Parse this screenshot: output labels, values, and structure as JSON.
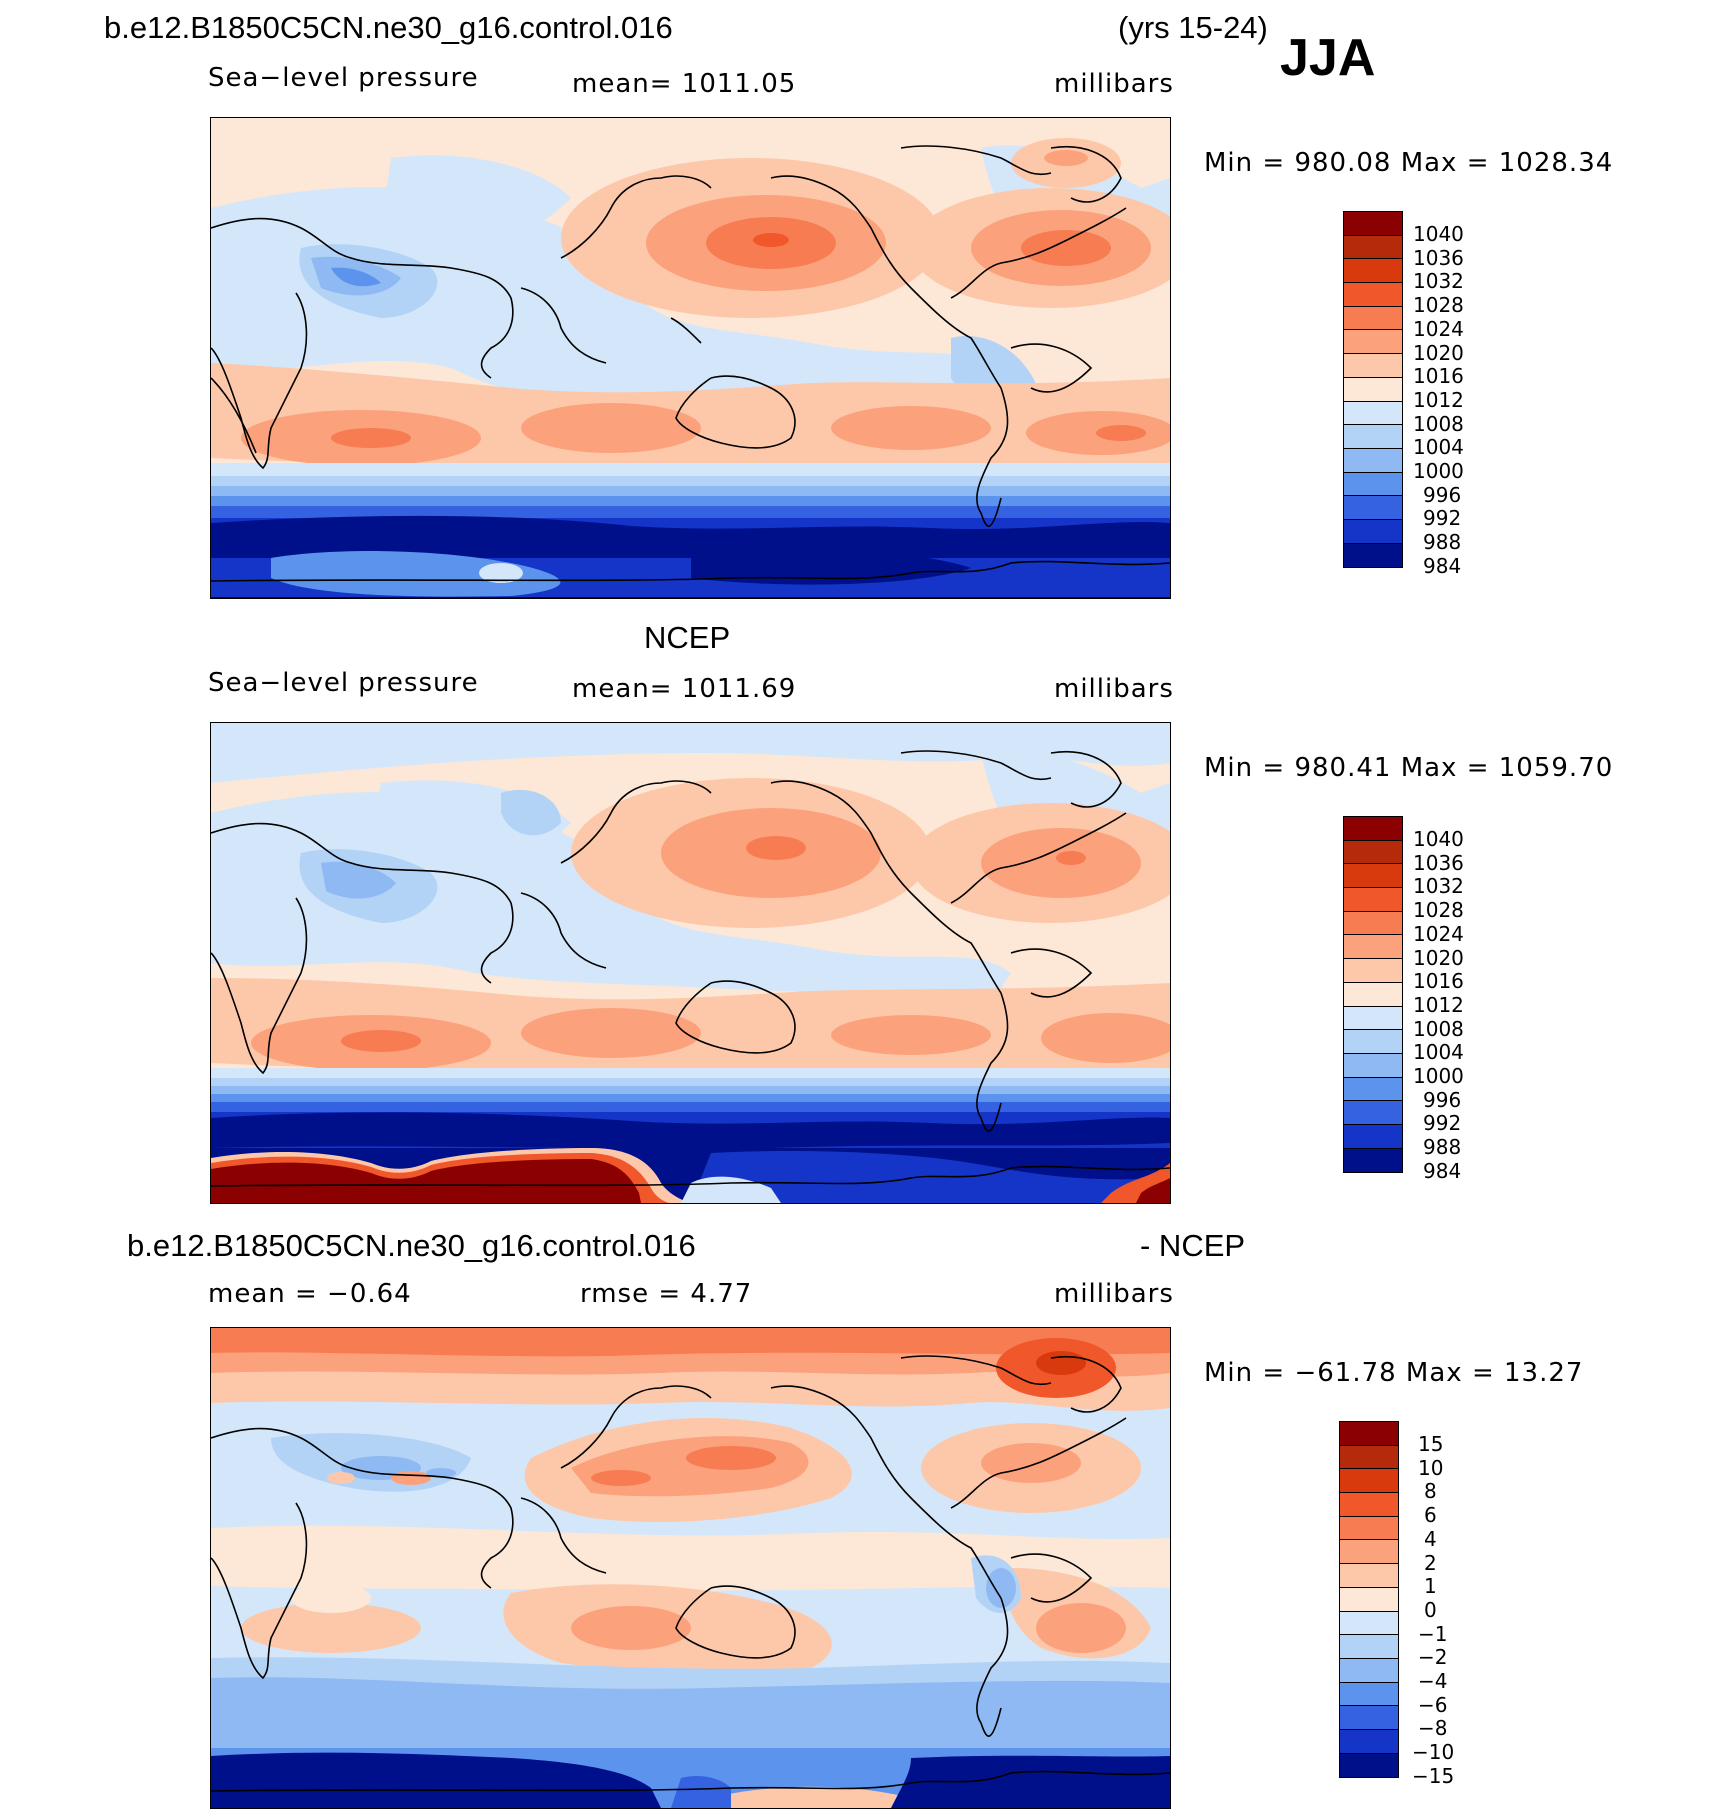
{
  "header": {
    "case_name": "b.e12.B1850C5CN.ne30_g16.control.016",
    "years": "(yrs 15-24)",
    "season": "JJA"
  },
  "panels": [
    {
      "id": "model",
      "variable": "Sea−level pressure",
      "mean_text": "mean=  1011.05",
      "units": "millibars",
      "minmax": "Min  =  980.08  Max  =  1028.34",
      "colorbar_labels": [
        "1040",
        "1036",
        "1032",
        "1028",
        "1024",
        "1020",
        "1016",
        "1012",
        "1008",
        "1004",
        "1000",
        "996",
        "992",
        "988",
        "984"
      ]
    },
    {
      "id": "obs",
      "title": "NCEP",
      "variable": "Sea−level pressure",
      "mean_text": "mean=  1011.69",
      "units": "millibars",
      "minmax": "Min  =  980.41  Max  =  1059.70",
      "colorbar_labels": [
        "1040",
        "1036",
        "1032",
        "1028",
        "1024",
        "1020",
        "1016",
        "1012",
        "1008",
        "1004",
        "1000",
        "996",
        "992",
        "988",
        "984"
      ]
    },
    {
      "id": "diff",
      "title_left": "b.e12.B1850C5CN.ne30_g16.control.016",
      "title_right": "- NCEP",
      "mean_text": "mean  =    −0.64",
      "rmse_text": "rmse  =     4.77",
      "units": "millibars",
      "minmax": "Min  =  −61.78  Max  =    13.27",
      "colorbar_labels": [
        "15",
        "10",
        "8",
        "6",
        "4",
        "2",
        "1",
        "0",
        "−1",
        "−2",
        "−4",
        "−6",
        "−8",
        "−10",
        "−15"
      ]
    }
  ],
  "colors": {
    "scale": [
      "#8b0000",
      "#b52a0a",
      "#d83a0e",
      "#f0572a",
      "#f77c52",
      "#fba27d",
      "#fdc8aa",
      "#fde7d6",
      "#d4e7fa",
      "#b2d3f6",
      "#8fb9f2",
      "#5c93ec",
      "#3462e0",
      "#1535c8",
      "#00108a"
    ],
    "land_outline": "#000000"
  }
}
